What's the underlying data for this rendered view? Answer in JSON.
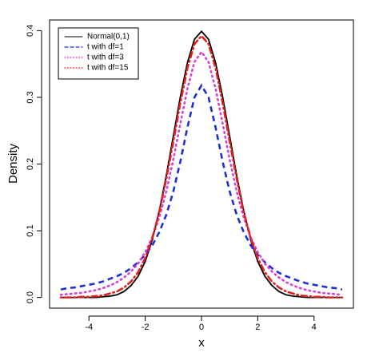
{
  "chart_data": {
    "type": "line",
    "xlabel": "x",
    "ylabel": "Density",
    "x": [
      -5,
      -4.75,
      -4.5,
      -4.25,
      -4,
      -3.75,
      -3.5,
      -3.25,
      -3,
      -2.75,
      -2.5,
      -2.25,
      -2,
      -1.75,
      -1.5,
      -1.25,
      -1,
      -0.75,
      -0.5,
      -0.25,
      0,
      0.25,
      0.5,
      0.75,
      1,
      1.25,
      1.5,
      1.75,
      2,
      2.25,
      2.5,
      2.75,
      3,
      3.25,
      3.5,
      3.75,
      4,
      4.25,
      4.5,
      4.75,
      5
    ],
    "series": [
      {
        "name": "Normal(0,1)",
        "color": "#000000",
        "linestyle": "solid",
        "values": [
          0,
          0,
          0,
          0,
          0,
          0,
          0.001,
          0.002,
          0.004,
          0.009,
          0.018,
          0.032,
          0.054,
          0.086,
          0.13,
          0.183,
          0.242,
          0.301,
          0.352,
          0.387,
          0.399,
          0.387,
          0.352,
          0.301,
          0.242,
          0.183,
          0.13,
          0.086,
          0.054,
          0.032,
          0.018,
          0.009,
          0.004,
          0.002,
          0.001,
          0,
          0,
          0,
          0,
          0,
          0
        ]
      },
      {
        "name": "t with df=1",
        "color": "#1f2fd6",
        "linestyle": "dashed",
        "values": [
          0.012,
          0.014,
          0.015,
          0.017,
          0.019,
          0.021,
          0.024,
          0.028,
          0.032,
          0.037,
          0.044,
          0.053,
          0.064,
          0.078,
          0.098,
          0.124,
          0.159,
          0.204,
          0.255,
          0.3,
          0.318,
          0.3,
          0.255,
          0.204,
          0.159,
          0.124,
          0.098,
          0.078,
          0.064,
          0.053,
          0.044,
          0.037,
          0.032,
          0.028,
          0.024,
          0.021,
          0.019,
          0.017,
          0.015,
          0.014,
          0.012
        ]
      },
      {
        "name": "t with df=3",
        "color": "#d63fd6",
        "linestyle": "dotted",
        "values": [
          0.004,
          0.005,
          0.006,
          0.007,
          0.009,
          0.011,
          0.014,
          0.018,
          0.023,
          0.03,
          0.039,
          0.051,
          0.068,
          0.09,
          0.12,
          0.159,
          0.207,
          0.261,
          0.313,
          0.353,
          0.368,
          0.353,
          0.313,
          0.261,
          0.207,
          0.159,
          0.12,
          0.09,
          0.068,
          0.051,
          0.039,
          0.03,
          0.023,
          0.018,
          0.014,
          0.011,
          0.009,
          0.007,
          0.006,
          0.005,
          0.004
        ]
      },
      {
        "name": "t with df=15",
        "color": "#e0201e",
        "linestyle": "dashdot",
        "values": [
          0,
          0,
          0,
          0.001,
          0.001,
          0.002,
          0.003,
          0.006,
          0.009,
          0.015,
          0.024,
          0.038,
          0.059,
          0.089,
          0.128,
          0.178,
          0.234,
          0.292,
          0.344,
          0.38,
          0.392,
          0.38,
          0.344,
          0.292,
          0.234,
          0.178,
          0.128,
          0.089,
          0.059,
          0.038,
          0.024,
          0.015,
          0.009,
          0.006,
          0.003,
          0.002,
          0.001,
          0.001,
          0,
          0,
          0
        ]
      }
    ],
    "xlim": [
      -5.4,
      5.4
    ],
    "ylim": [
      -0.016,
      0.416
    ],
    "xticks": [
      -4,
      -2,
      0,
      2,
      4
    ],
    "yticks": [
      {
        "value": 0,
        "label": "0.0"
      },
      0.1,
      0.2,
      0.3,
      0.4
    ],
    "grid": false,
    "legend": "topleft"
  }
}
